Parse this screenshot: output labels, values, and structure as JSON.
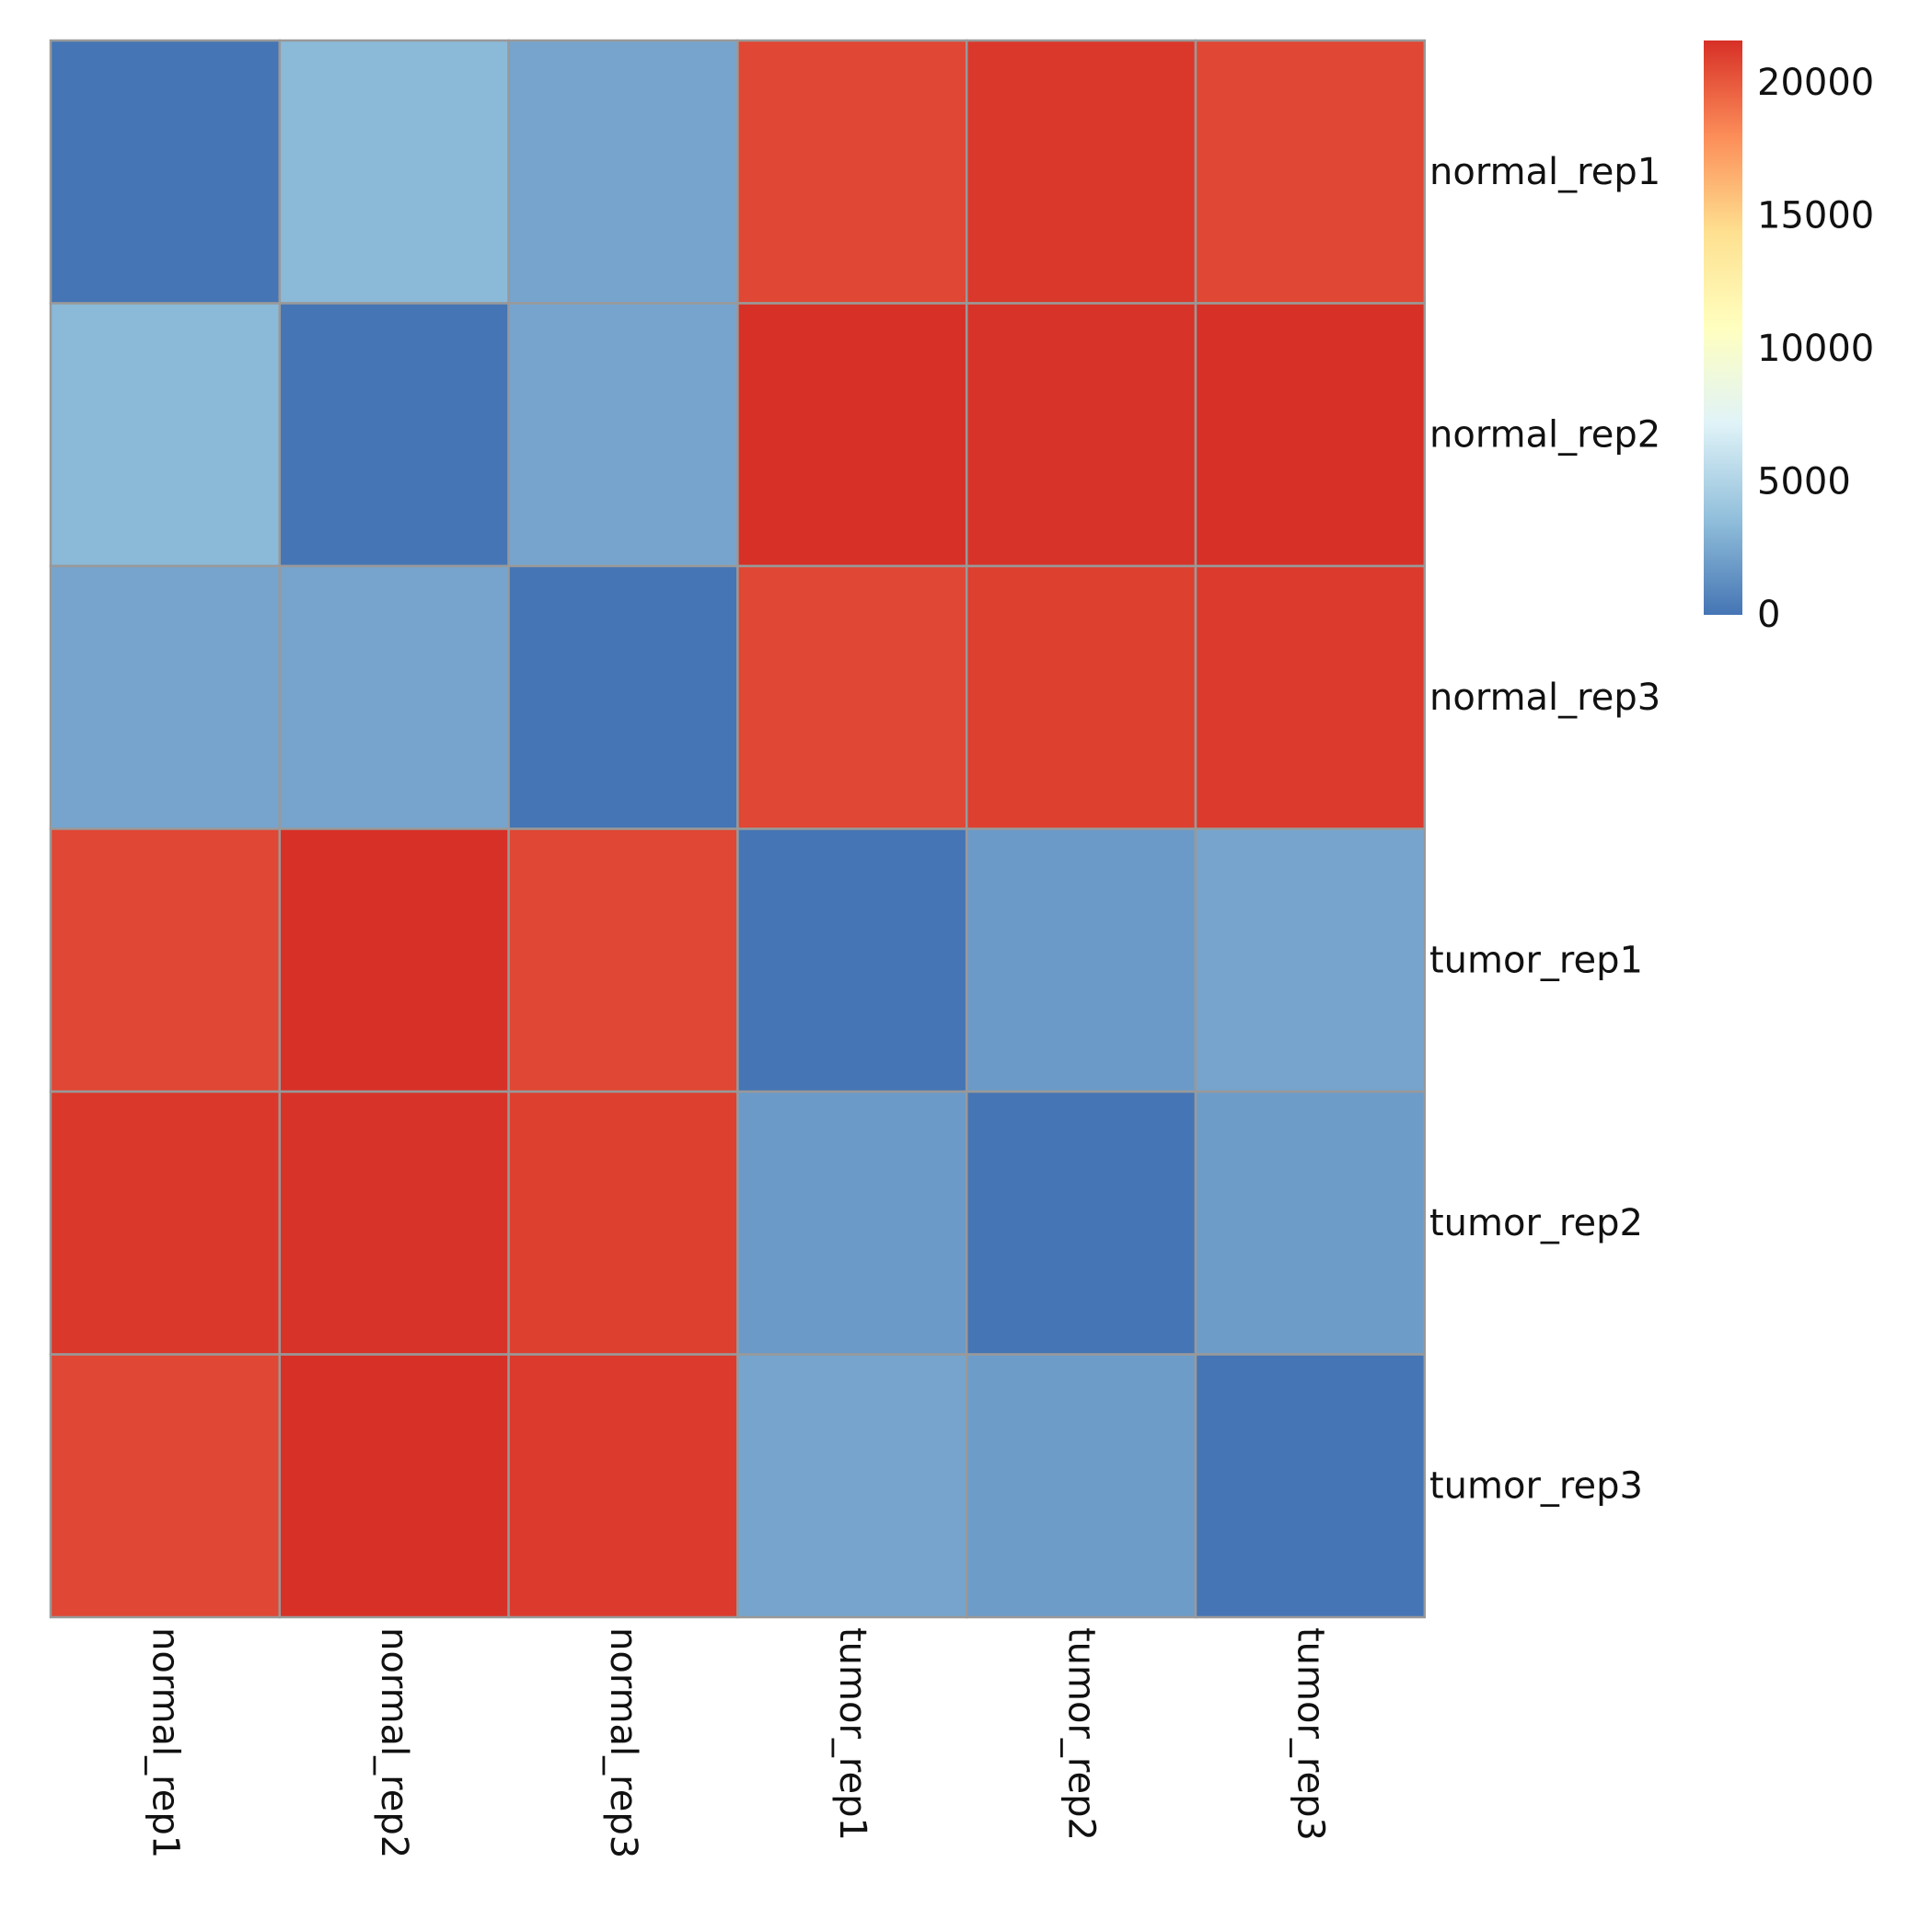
{
  "chart_data": {
    "type": "heatmap",
    "title": "",
    "xlabel": "",
    "ylabel": "",
    "rows": [
      "normal_rep1",
      "normal_rep2",
      "normal_rep3",
      "tumor_rep1",
      "tumor_rep2",
      "tumor_rep3"
    ],
    "columns": [
      "normal_rep1",
      "normal_rep2",
      "normal_rep3",
      "tumor_rep1",
      "tumor_rep2",
      "tumor_rep3"
    ],
    "values": [
      [
        0,
        3300,
        2300,
        20700,
        21300,
        20700
      ],
      [
        3300,
        0,
        2300,
        21600,
        21500,
        21600
      ],
      [
        2300,
        2300,
        0,
        20700,
        21000,
        21200
      ],
      [
        20700,
        21600,
        20700,
        0,
        1800,
        2300
      ],
      [
        21300,
        21500,
        21000,
        1800,
        0,
        1900
      ],
      [
        20700,
        21600,
        21200,
        2300,
        1900,
        0
      ]
    ],
    "colorbar": {
      "ticks": [
        0,
        5000,
        10000,
        15000,
        20000
      ],
      "tick_labels": [
        "0",
        "5000",
        "10000",
        "15000",
        "20000"
      ],
      "min": 0,
      "max": 21600
    },
    "colors": {
      "scale": [
        "#4575b4",
        "#91bfdb",
        "#e0f3f8",
        "#ffffbf",
        "#fee090",
        "#fc8d59",
        "#d73027"
      ],
      "cell_border": "#999999"
    }
  }
}
